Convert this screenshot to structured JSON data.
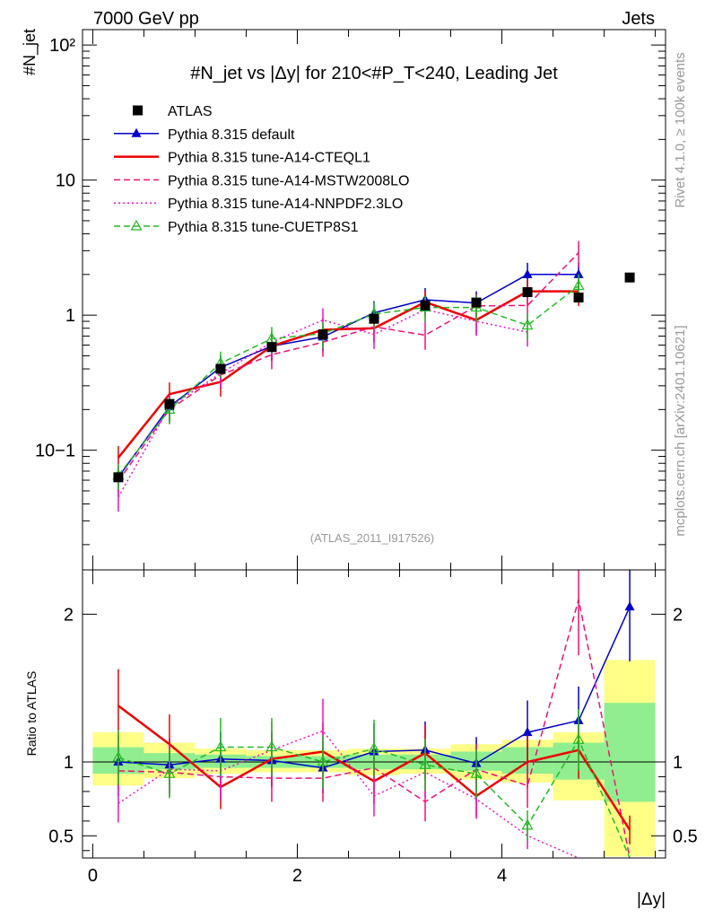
{
  "header": {
    "energy_label": "7000 GeV pp",
    "category_label": "Jets",
    "rivet_label": "Rivet 4.1.0, ≥ 100k events",
    "source_label": "mcplots.cern.ch [arXiv:2401.10621]",
    "analysis_label": "(ATLAS_2011_I917526)"
  },
  "chart_data": [
    {
      "type": "line",
      "panel": "main",
      "title": "#N_jet vs |Δy| for 210<#P_T<240, Leading Jet",
      "ylabel": "#N_jet",
      "yscale": "log",
      "ylim": [
        0.013,
        130
      ],
      "xlim": [
        -0.1,
        5.6
      ],
      "yticks": [
        {
          "value": 0.1,
          "label": "10−1"
        },
        {
          "value": 1,
          "label": "1"
        },
        {
          "value": 10,
          "label": "10"
        },
        {
          "value": 100,
          "label": "10²"
        }
      ],
      "x": [
        0.25,
        0.75,
        1.25,
        1.75,
        2.25,
        2.75,
        3.25,
        3.75,
        4.25,
        4.75,
        5.25
      ],
      "series": [
        {
          "name": "ATLAS",
          "color": "#000000",
          "style": "points",
          "values": [
            0.063,
            0.22,
            0.4,
            0.58,
            0.72,
            0.94,
            1.18,
            1.24,
            1.48,
            1.35,
            1.9
          ]
        },
        {
          "name": "Pythia 8.315 default",
          "color": "#0000cc",
          "style": "solid-triangle",
          "values": [
            0.063,
            0.21,
            0.41,
            0.59,
            0.69,
            1.04,
            1.3,
            1.23,
            2.0,
            2.0,
            null
          ]
        },
        {
          "name": "Pythia 8.315 tune-A14-CTEQL1",
          "color": "#ee0000",
          "style": "thick",
          "values": [
            0.088,
            0.26,
            0.32,
            0.59,
            0.78,
            0.8,
            1.25,
            0.92,
            1.5,
            1.5,
            null
          ]
        },
        {
          "name": "Pythia 8.315 tune-A14-MSTW2008LO",
          "color": "#ee1177",
          "style": "dashed",
          "values": [
            0.059,
            0.2,
            0.36,
            0.51,
            0.63,
            0.82,
            0.71,
            1.17,
            1.18,
            2.9,
            null
          ]
        },
        {
          "name": "Pythia 8.315 tune-A14-NNPDF2.3LO",
          "color": "#ee11cc",
          "style": "dotted",
          "values": [
            0.045,
            0.21,
            0.37,
            0.63,
            0.92,
            0.72,
            1.1,
            0.9,
            0.75,
            null,
            null
          ]
        },
        {
          "name": "Pythia 8.315 tune-CUETP8S1",
          "color": "#22bb22",
          "style": "dashed-triangle",
          "values": [
            0.065,
            0.2,
            0.44,
            0.67,
            0.73,
            1.02,
            1.14,
            1.14,
            0.84,
            1.65,
            null
          ]
        }
      ]
    },
    {
      "type": "line",
      "panel": "ratio",
      "ylabel": "Ratio to ATLAS",
      "xlabel": "|Δy|",
      "ylim": [
        0.35,
        2.3
      ],
      "xlim": [
        -0.1,
        5.6
      ],
      "yticks": [
        {
          "value": 0.5,
          "label": "0.5"
        },
        {
          "value": 1,
          "label": "1"
        },
        {
          "value": 2,
          "label": "2"
        }
      ],
      "xticks": [
        {
          "value": 0,
          "label": "0"
        },
        {
          "value": 2,
          "label": "2"
        },
        {
          "value": 4,
          "label": "4"
        }
      ],
      "bands": {
        "edges": [
          0,
          0.5,
          1.0,
          1.5,
          2.0,
          2.5,
          3.0,
          3.5,
          4.0,
          4.5,
          5.0,
          5.5
        ],
        "inner": [
          [
            0.92,
            1.1
          ],
          [
            0.95,
            1.06
          ],
          [
            0.96,
            1.05
          ],
          [
            0.96,
            1.04
          ],
          [
            0.96,
            1.04
          ],
          [
            0.95,
            1.05
          ],
          [
            0.95,
            1.05
          ],
          [
            0.94,
            1.07
          ],
          [
            0.92,
            1.1
          ],
          [
            0.88,
            1.13
          ],
          [
            0.73,
            1.4
          ]
        ],
        "outer": [
          [
            0.84,
            1.2
          ],
          [
            0.89,
            1.13
          ],
          [
            0.92,
            1.09
          ],
          [
            0.93,
            1.08
          ],
          [
            0.93,
            1.08
          ],
          [
            0.91,
            1.09
          ],
          [
            0.92,
            1.09
          ],
          [
            0.88,
            1.12
          ],
          [
            0.86,
            1.15
          ],
          [
            0.74,
            1.2
          ],
          [
            0.36,
            1.69
          ]
        ],
        "inner_color": "#90ee90",
        "outer_color": "#ffff88"
      },
      "x": [
        0.25,
        0.75,
        1.25,
        1.75,
        2.25,
        2.75,
        3.25,
        3.75,
        4.25,
        4.75,
        5.25
      ],
      "series": [
        {
          "name": "Pythia 8.315 default",
          "color": "#0000cc",
          "values": [
            1.0,
            0.98,
            1.02,
            1.01,
            0.96,
            1.07,
            1.08,
            0.99,
            1.2,
            1.28,
            2.05
          ]
        },
        {
          "name": "Pythia 8.315 tune-A14-CTEQL1",
          "color": "#ee0000",
          "values": [
            1.38,
            1.12,
            0.83,
            1.02,
            1.07,
            0.87,
            1.06,
            0.77,
            1.0,
            1.08,
            0.54
          ]
        },
        {
          "name": "Pythia 8.315 tune-A14-MSTW2008LO",
          "color": "#ee1177",
          "values": [
            0.94,
            0.93,
            0.9,
            0.89,
            0.89,
            0.96,
            0.73,
            0.95,
            0.84,
            2.1,
            0.32
          ]
        },
        {
          "name": "Pythia 8.315 tune-A14-NNPDF2.3LO",
          "color": "#ee11cc",
          "values": [
            0.72,
            0.95,
            0.94,
            1.08,
            1.21,
            0.77,
            0.93,
            0.75,
            0.5,
            0.32,
            null
          ]
        },
        {
          "name": "Pythia 8.315 tune-CUETP8S1",
          "color": "#22bb22",
          "values": [
            1.03,
            0.92,
            1.1,
            1.1,
            1.0,
            1.09,
            0.98,
            0.92,
            0.57,
            1.15,
            0.3
          ]
        }
      ]
    }
  ]
}
